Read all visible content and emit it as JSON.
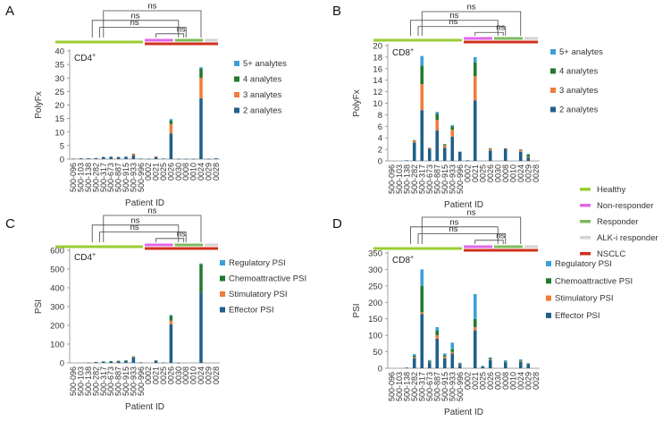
{
  "patients": [
    "500-096",
    "500-103",
    "500-138",
    "500-282",
    "500-317",
    "500-673",
    "500-887",
    "500-915",
    "500-933",
    "500-996",
    "0002",
    "0021",
    "0025",
    "0026",
    "0030",
    "0008",
    "0010",
    "0024",
    "0029",
    "0028"
  ],
  "group_legend": [
    {
      "name": "Healthy",
      "color": "#9acd32"
    },
    {
      "name": "Non-responder",
      "color": "#e066e8"
    },
    {
      "name": "Responder",
      "color": "#7dbb5e"
    },
    {
      "name": "ALK-i responder",
      "color": "#d3d3d3"
    },
    {
      "name": "NSCLC",
      "color": "#d0301c"
    }
  ],
  "sig_label": "ns",
  "chart_data": [
    {
      "panel": "A",
      "type": "bar",
      "stacked": true,
      "cell_label": "CD4",
      "cell_sup": "+",
      "ylabel": "PolyFx",
      "xlabel": "Patient ID",
      "ylim": [
        0,
        40
      ],
      "yticks": [
        0,
        5,
        10,
        15,
        20,
        25,
        30,
        35,
        40
      ],
      "series": [
        {
          "name": "2 analytes",
          "color": "#1f5f8b",
          "values": [
            0.2,
            0.3,
            0.3,
            0.4,
            0.8,
            0.9,
            0.8,
            0.9,
            1.4,
            0.2,
            0.1,
            0.8,
            0.2,
            9.5,
            0.1,
            0.1,
            0.1,
            22.5,
            0.1,
            0.3
          ]
        },
        {
          "name": "3 analytes",
          "color": "#f07c3c",
          "values": [
            0,
            0,
            0,
            0,
            0,
            0,
            0,
            0,
            0.4,
            0,
            0,
            0.2,
            0,
            3.5,
            0,
            0,
            0,
            7.5,
            0,
            0
          ]
        },
        {
          "name": "4 analytes",
          "color": "#1f7a2e",
          "values": [
            0,
            0,
            0,
            0,
            0,
            0,
            0,
            0,
            0.2,
            0,
            0,
            0,
            0,
            1.2,
            0,
            0,
            0,
            3.5,
            0,
            0
          ]
        },
        {
          "name": "5+ analytes",
          "color": "#3aa0d8",
          "values": [
            0,
            0,
            0,
            0,
            0,
            0,
            0,
            0,
            0,
            0,
            0,
            0,
            0,
            0.6,
            0,
            0,
            0,
            0.5,
            0,
            0
          ]
        }
      ]
    },
    {
      "panel": "B",
      "type": "bar",
      "stacked": true,
      "cell_label": "CD8",
      "cell_sup": "+",
      "ylabel": "PolyFx",
      "xlabel": "Patient ID",
      "ylim": [
        0,
        20
      ],
      "yticks": [
        0,
        2,
        4,
        6,
        8,
        10,
        12,
        14,
        16,
        18,
        20
      ],
      "series": [
        {
          "name": "2 analytes",
          "color": "#1f5f8b",
          "values": [
            0,
            0,
            0.1,
            3.2,
            8.8,
            2.1,
            5.3,
            2.3,
            4.2,
            1.6,
            0.1,
            10.5,
            0,
            1.8,
            0,
            2.1,
            0,
            1.6,
            0.6,
            0
          ]
        },
        {
          "name": "3 analytes",
          "color": "#f07c3c",
          "values": [
            0,
            0,
            0,
            0.3,
            4.5,
            0.2,
            1.8,
            0.4,
            1.2,
            0,
            0,
            4.2,
            0,
            0.3,
            0,
            0.1,
            0,
            0.3,
            0.1,
            0
          ]
        },
        {
          "name": "4 analytes",
          "color": "#1f7a2e",
          "values": [
            0,
            0,
            0,
            0.1,
            3.2,
            0,
            1.1,
            0.2,
            0.6,
            0,
            0,
            2.4,
            0,
            0.1,
            0,
            0,
            0,
            0.1,
            0.4,
            0
          ]
        },
        {
          "name": "5+ analytes",
          "color": "#3aa0d8",
          "values": [
            0,
            0,
            0,
            0,
            1.7,
            0,
            0.3,
            0,
            0.2,
            0,
            0,
            0.9,
            0,
            0,
            0,
            0,
            0,
            0,
            0.1,
            0
          ]
        }
      ]
    },
    {
      "panel": "C",
      "type": "bar",
      "stacked": true,
      "cell_label": "CD4",
      "cell_sup": "+",
      "ylabel": "PSI",
      "xlabel": "Patient ID",
      "ylim": [
        0,
        600
      ],
      "yticks": [
        0,
        100,
        200,
        300,
        400,
        500,
        600
      ],
      "series": [
        {
          "name": "Effector PSI",
          "color": "#1f5f8b",
          "values": [
            0,
            0,
            2,
            5,
            7,
            8,
            10,
            12,
            30,
            3,
            0,
            12,
            2,
            205,
            1,
            0,
            0,
            375,
            0,
            0
          ]
        },
        {
          "name": "Stimulatory PSI",
          "color": "#f07c3c",
          "values": [
            0,
            0,
            0,
            0,
            0,
            0,
            0,
            0,
            2,
            0,
            0,
            0,
            0,
            20,
            0,
            0,
            0,
            0,
            0,
            0
          ]
        },
        {
          "name": "Chemoattractive PSI",
          "color": "#1f7a2e",
          "values": [
            0,
            0,
            0,
            0,
            1,
            1,
            1,
            1,
            3,
            0,
            0,
            1,
            0,
            25,
            0,
            0,
            0,
            150,
            0,
            0
          ]
        },
        {
          "name": "Regulatory PSI",
          "color": "#3aa0d8",
          "values": [
            0,
            0,
            0,
            0,
            0,
            0,
            0,
            0,
            0,
            0,
            0,
            0,
            0,
            5,
            0,
            0,
            0,
            5,
            0,
            0
          ]
        }
      ]
    },
    {
      "panel": "D",
      "type": "bar",
      "stacked": true,
      "cell_label": "CD8",
      "cell_sup": "+",
      "ylabel": "PSI",
      "xlabel": "Patient ID",
      "ylim": [
        0,
        350
      ],
      "yticks": [
        0,
        50,
        100,
        150,
        200,
        250,
        300,
        350
      ],
      "series": [
        {
          "name": "Effector PSI",
          "color": "#1f5f8b",
          "values": [
            0,
            0,
            2,
            30,
            165,
            18,
            90,
            30,
            45,
            10,
            0,
            115,
            5,
            25,
            0,
            18,
            0,
            20,
            12,
            0
          ]
        },
        {
          "name": "Stimulatory PSI",
          "color": "#f07c3c",
          "values": [
            0,
            0,
            0,
            3,
            5,
            1,
            10,
            5,
            5,
            1,
            0,
            10,
            0,
            2,
            0,
            1,
            0,
            2,
            1,
            0
          ]
        },
        {
          "name": "Chemoattractive PSI",
          "color": "#1f7a2e",
          "values": [
            0,
            0,
            0,
            5,
            80,
            3,
            15,
            5,
            8,
            3,
            0,
            25,
            1,
            3,
            0,
            1,
            0,
            2,
            1,
            0
          ]
        },
        {
          "name": "Regulatory PSI",
          "color": "#3aa0d8",
          "values": [
            0,
            0,
            0,
            5,
            50,
            3,
            10,
            5,
            20,
            3,
            0,
            75,
            1,
            3,
            0,
            4,
            0,
            3,
            2,
            0
          ]
        }
      ]
    }
  ]
}
